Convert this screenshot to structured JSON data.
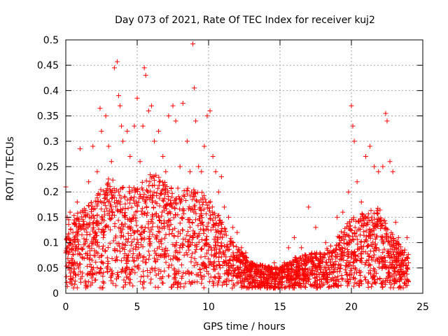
{
  "chart_data": {
    "type": "scatter",
    "title": "Day 073 of 2021, Rate Of TEC Index for receiver kuj2",
    "xlabel": "GPS time / hours",
    "ylabel": "ROTI / TECUs",
    "xlim": [
      0,
      25
    ],
    "ylim": [
      0,
      0.5
    ],
    "x_ticks": [
      "0",
      "5",
      "10",
      "15",
      "20",
      "25"
    ],
    "y_ticks": [
      "0",
      "0.05",
      "0.1",
      "0.15",
      "0.2",
      "0.25",
      "0.3",
      "0.35",
      "0.4",
      "0.45",
      "0.5"
    ],
    "grid": true,
    "marker": "+",
    "marker_color": "#ff0000",
    "grid_color": "#a0a0a0",
    "series": [
      {
        "name": "ROTI",
        "points": [
          [
            0.0,
            0.21
          ],
          [
            0.1,
            0.15
          ],
          [
            0.3,
            0.16
          ],
          [
            0.5,
            0.12
          ],
          [
            0.8,
            0.18
          ],
          [
            1.0,
            0.285
          ],
          [
            1.2,
            0.16
          ],
          [
            1.6,
            0.22
          ],
          [
            1.9,
            0.29
          ],
          [
            2.2,
            0.24
          ],
          [
            2.4,
            0.365
          ],
          [
            2.5,
            0.32
          ],
          [
            2.8,
            0.35
          ],
          [
            3.0,
            0.29
          ],
          [
            3.2,
            0.26
          ],
          [
            3.4,
            0.445
          ],
          [
            3.6,
            0.457
          ],
          [
            3.7,
            0.39
          ],
          [
            3.8,
            0.37
          ],
          [
            3.9,
            0.33
          ],
          [
            4.0,
            0.3
          ],
          [
            4.3,
            0.32
          ],
          [
            4.5,
            0.27
          ],
          [
            4.8,
            0.33
          ],
          [
            5.0,
            0.385
          ],
          [
            5.2,
            0.26
          ],
          [
            5.4,
            0.33
          ],
          [
            5.5,
            0.445
          ],
          [
            5.6,
            0.43
          ],
          [
            5.8,
            0.36
          ],
          [
            6.0,
            0.37
          ],
          [
            6.2,
            0.3
          ],
          [
            6.5,
            0.32
          ],
          [
            6.8,
            0.27
          ],
          [
            7.0,
            0.24
          ],
          [
            7.2,
            0.35
          ],
          [
            7.5,
            0.37
          ],
          [
            7.7,
            0.34
          ],
          [
            8.0,
            0.25
          ],
          [
            8.2,
            0.375
          ],
          [
            8.5,
            0.3
          ],
          [
            8.7,
            0.24
          ],
          [
            8.9,
            0.492
          ],
          [
            9.0,
            0.405
          ],
          [
            9.1,
            0.34
          ],
          [
            9.3,
            0.25
          ],
          [
            9.5,
            0.24
          ],
          [
            9.7,
            0.29
          ],
          [
            9.9,
            0.35
          ],
          [
            10.1,
            0.36
          ],
          [
            10.3,
            0.27
          ],
          [
            10.5,
            0.24
          ],
          [
            10.7,
            0.2
          ],
          [
            10.9,
            0.23
          ],
          [
            11.1,
            0.17
          ],
          [
            11.4,
            0.15
          ],
          [
            11.7,
            0.13
          ],
          [
            12.0,
            0.12
          ],
          [
            12.3,
            0.09
          ],
          [
            12.6,
            0.08
          ],
          [
            13.0,
            0.06
          ],
          [
            13.4,
            0.05
          ],
          [
            13.8,
            0.055
          ],
          [
            14.2,
            0.05
          ],
          [
            14.6,
            0.06
          ],
          [
            15.0,
            0.05
          ],
          [
            15.3,
            0.06
          ],
          [
            15.6,
            0.09
          ],
          [
            16.0,
            0.11
          ],
          [
            16.5,
            0.09
          ],
          [
            17.0,
            0.17
          ],
          [
            17.5,
            0.13
          ],
          [
            17.8,
            0.08
          ],
          [
            18.2,
            0.1
          ],
          [
            18.6,
            0.08
          ],
          [
            19.0,
            0.15
          ],
          [
            19.4,
            0.16
          ],
          [
            19.8,
            0.2
          ],
          [
            20.0,
            0.37
          ],
          [
            20.1,
            0.33
          ],
          [
            20.2,
            0.3
          ],
          [
            20.4,
            0.22
          ],
          [
            20.7,
            0.18
          ],
          [
            21.0,
            0.27
          ],
          [
            21.3,
            0.29
          ],
          [
            21.6,
            0.25
          ],
          [
            21.9,
            0.24
          ],
          [
            22.2,
            0.25
          ],
          [
            22.4,
            0.355
          ],
          [
            22.5,
            0.34
          ],
          [
            22.7,
            0.26
          ],
          [
            22.9,
            0.24
          ],
          [
            23.1,
            0.14
          ],
          [
            23.3,
            0.11
          ],
          [
            23.6,
            0.08
          ],
          [
            23.9,
            0.11
          ],
          [
            24.0,
            0.06
          ]
        ]
      }
    ]
  }
}
